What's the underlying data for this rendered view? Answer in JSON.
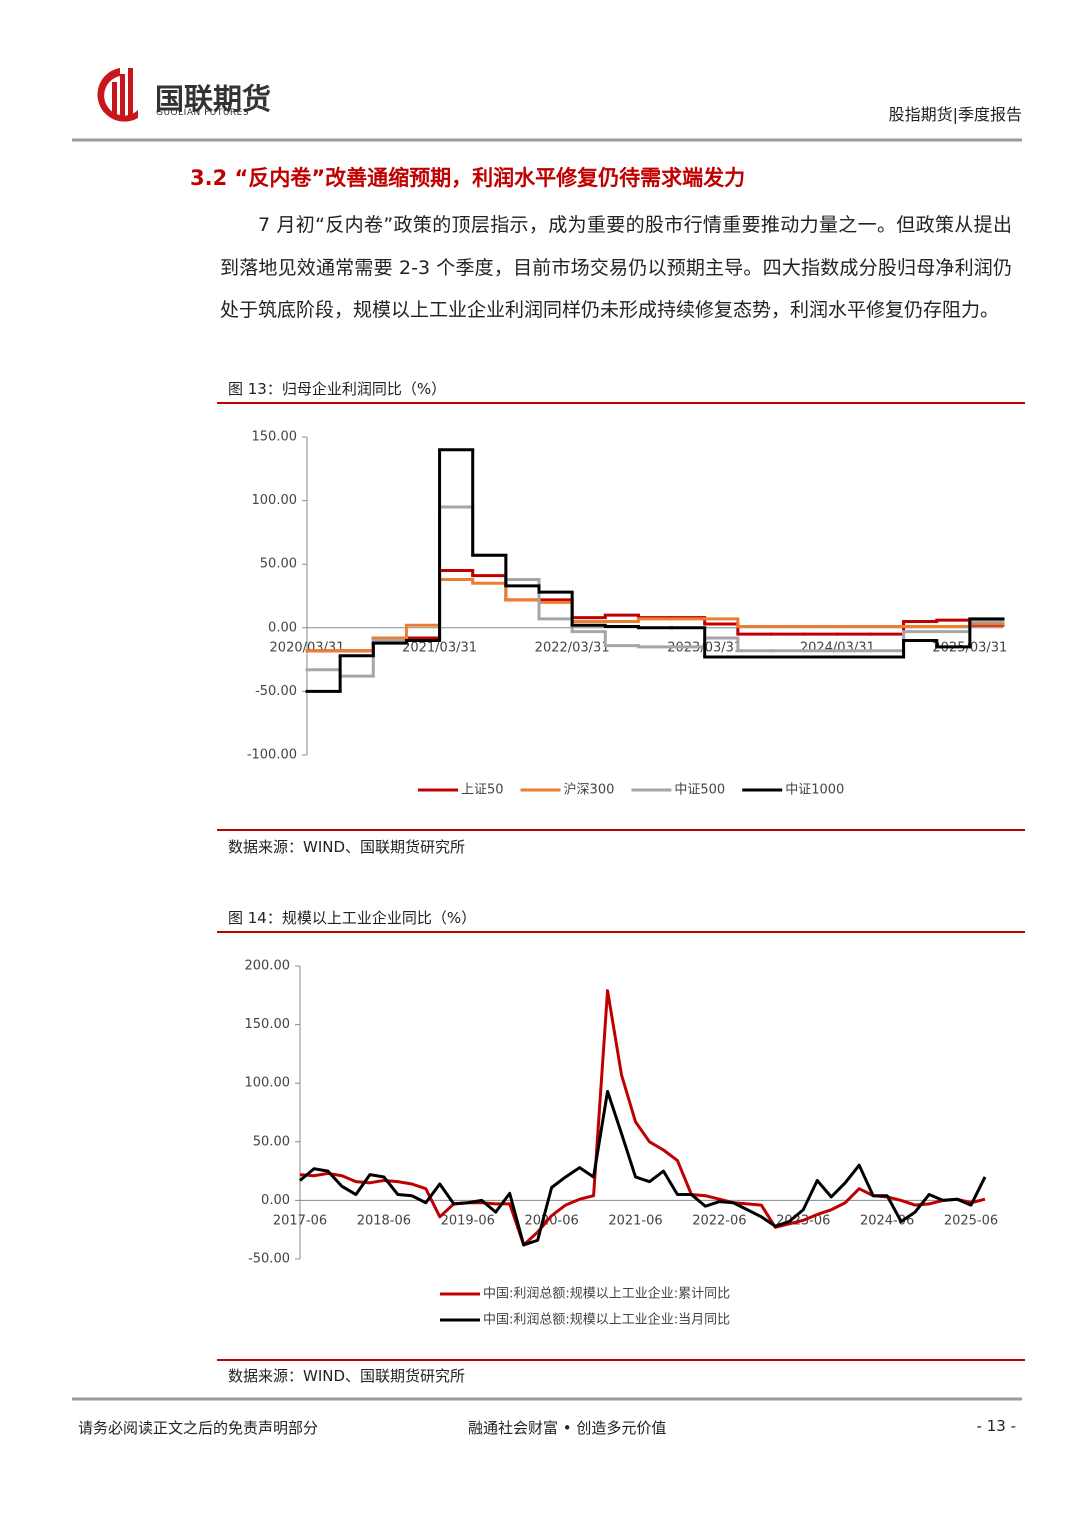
{
  "header": {
    "logo_name": "国联期货",
    "logo_english": "GUOLIAN FUTURES",
    "report_type": "股指期货|季度报告"
  },
  "section": {
    "title": "3.2 “反内卷”改善通缩预期，利润水平修复仍待需求端发力"
  },
  "paragraph": "7 月初“反内卷”政策的顶层指示，成为重要的股市行情重要推动力量之一。但政策从提出到落地见效通常需要 2-3 个季度，目前市场交易仍以预期主导。四大指数成分股归母净利润仍处于筑底阶段，规模以上工业企业利润同样仍未形成持续修复态势，利润水平修复仍存阻力。",
  "figures": [
    {
      "caption": "图 13：归母企业利润同比（%）",
      "source": "数据来源：WIND、国联期货研究所"
    },
    {
      "caption": "图 14：规模以上工业企业同比（%）",
      "source": "数据来源：WIND、国联期货研究所"
    }
  ],
  "chart_data": [
    {
      "type": "line",
      "step": true,
      "legend": "bottom",
      "categories": [
        "2020/03/31",
        null,
        null,
        null,
        "2021/03/31",
        null,
        null,
        null,
        "2022/03/31",
        null,
        null,
        null,
        "2023/03/31",
        null,
        null,
        null,
        "2024/03/31",
        null,
        null,
        null,
        "2025/03/31"
      ],
      "series": [
        {
          "name": "上证50",
          "color": "#c00000",
          "values": [
            -18,
            -18,
            -8,
            -8,
            45,
            41,
            22,
            22,
            8,
            10,
            8,
            8,
            3,
            -5,
            -5,
            -5,
            -5,
            -5,
            5,
            6,
            2
          ]
        },
        {
          "name": "沪深300",
          "color": "#ed7d31",
          "values": [
            -18,
            -18,
            -8,
            2,
            38,
            35,
            22,
            20,
            5,
            5,
            7,
            7,
            7,
            1,
            1,
            1,
            1,
            1,
            1,
            1,
            3
          ]
        },
        {
          "name": "中证500",
          "color": "#a6a6a6",
          "values": [
            -33,
            -38,
            -10,
            -10,
            95,
            57,
            38,
            7,
            -3,
            -14,
            -15,
            -15,
            -8,
            -18,
            -18,
            -18,
            -18,
            -18,
            -3,
            -3,
            5
          ]
        },
        {
          "name": "中证1000",
          "color": "#000000",
          "values": [
            -50,
            -22,
            -12,
            -10,
            140,
            57,
            33,
            28,
            2,
            1,
            0,
            0,
            -23,
            -23,
            -23,
            -23,
            -23,
            -23,
            -10,
            -15,
            7
          ]
        }
      ],
      "ylim": [
        -100,
        150
      ],
      "yticks": [
        {
          "value": -100,
          "label": "-100.00"
        },
        {
          "value": -50,
          "label": "-50.00"
        },
        {
          "value": 0,
          "label": "0.00"
        },
        {
          "value": 50,
          "label": "50.00"
        },
        {
          "value": 100,
          "label": "100.00"
        },
        {
          "value": 150,
          "label": "150.00"
        }
      ]
    },
    {
      "type": "line",
      "step": false,
      "legend": "bottom",
      "categories": [
        "2017-06",
        null,
        null,
        null,
        null,
        null,
        "2018-06",
        null,
        null,
        null,
        null,
        null,
        "2019-06",
        null,
        null,
        null,
        null,
        null,
        "2020-06",
        null,
        null,
        null,
        null,
        null,
        "2021-06",
        null,
        null,
        null,
        null,
        null,
        "2022-06",
        null,
        null,
        null,
        null,
        null,
        "2023-06",
        null,
        null,
        null,
        null,
        null,
        "2024-06",
        null,
        null,
        null,
        null,
        null,
        "2025-06",
        null
      ],
      "series": [
        {
          "name": "中国:利润总额:规模以上工业企业:累计同比",
          "color": "#c00000",
          "values": [
            22,
            21,
            23,
            21,
            16,
            15,
            17,
            16,
            14,
            10,
            -14,
            -3,
            -2,
            -2,
            -3,
            -3,
            -38,
            -27,
            -13,
            -4,
            1,
            4,
            179,
            107,
            67,
            50,
            43,
            34,
            5,
            4,
            1,
            -2,
            -3,
            -4,
            -23,
            -20,
            -17,
            -12,
            -8,
            -2,
            10,
            4,
            3,
            0,
            -4,
            -3,
            0,
            1,
            -2,
            1
          ]
        },
        {
          "name": "中国:利润总额:规模以上工业企业:当月同比",
          "color": "#000000",
          "values": [
            17,
            27,
            25,
            12,
            5,
            22,
            20,
            5,
            4,
            -2,
            14,
            -3,
            -2,
            0,
            -10,
            6,
            -38,
            -34,
            11,
            20,
            28,
            20,
            93,
            57,
            20,
            16,
            25,
            5,
            5,
            -5,
            -1,
            -2,
            -8,
            -14,
            -22,
            -18,
            -8,
            17,
            3,
            15,
            30,
            4,
            4,
            -18,
            -10,
            5,
            0,
            1,
            -4,
            20
          ]
        }
      ],
      "ylim": [
        -50,
        200
      ],
      "yticks": [
        {
          "value": -50,
          "label": "-50.00"
        },
        {
          "value": 0,
          "label": "0.00"
        },
        {
          "value": 50,
          "label": "50.00"
        },
        {
          "value": 100,
          "label": "100.00"
        },
        {
          "value": 150,
          "label": "150.00"
        },
        {
          "value": 200,
          "label": "200.00"
        }
      ]
    }
  ],
  "footer": {
    "disclaimer": "请务必阅读正文之后的免责声明部分",
    "slogan": "融通社会财富 • 创造多元价值",
    "page": "- 13 -"
  }
}
